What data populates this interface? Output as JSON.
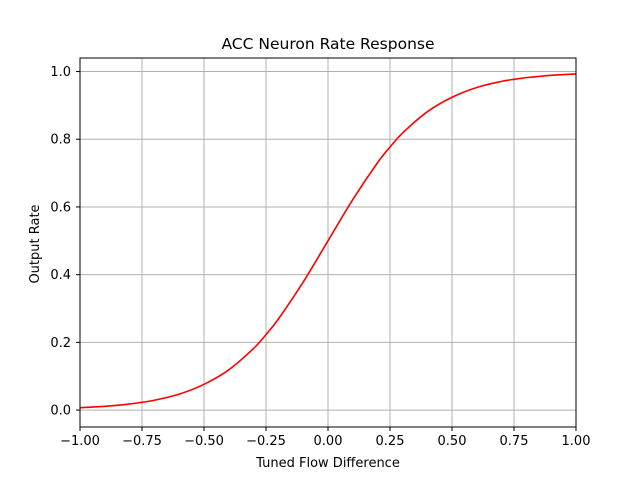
{
  "chart_data": {
    "type": "line",
    "title": "ACC Neuron Rate Response",
    "xlabel": "Tuned Flow Difference",
    "ylabel": "Output Rate",
    "xlim": [
      -1.0,
      1.0
    ],
    "ylim": [
      -0.05,
      1.04
    ],
    "grid": true,
    "x_ticks": [
      -1.0,
      -0.75,
      -0.5,
      -0.25,
      0.0,
      0.25,
      0.5,
      0.75,
      1.0
    ],
    "x_tick_labels": [
      "−1.00",
      "−0.75",
      "−0.50",
      "−0.25",
      "0.00",
      "0.25",
      "0.50",
      "0.75",
      "1.00"
    ],
    "y_ticks": [
      0.0,
      0.2,
      0.4,
      0.6,
      0.8,
      1.0
    ],
    "y_tick_labels": [
      "0.0",
      "0.2",
      "0.4",
      "0.6",
      "0.8",
      "1.0"
    ],
    "series": [
      {
        "color": "#ff0000",
        "x": [
          -1.0,
          -0.9,
          -0.8,
          -0.75,
          -0.7,
          -0.6,
          -0.5,
          -0.4,
          -0.3,
          -0.25,
          -0.2,
          -0.1,
          0.0,
          0.1,
          0.2,
          0.25,
          0.3,
          0.4,
          0.5,
          0.6,
          0.7,
          0.75,
          0.8,
          0.9,
          1.0
        ],
        "y": [
          0.007,
          0.011,
          0.018,
          0.023,
          0.029,
          0.047,
          0.076,
          0.119,
          0.182,
          0.223,
          0.269,
          0.378,
          0.5,
          0.622,
          0.731,
          0.777,
          0.818,
          0.881,
          0.924,
          0.953,
          0.971,
          0.977,
          0.982,
          0.989,
          0.993
        ]
      }
    ]
  }
}
